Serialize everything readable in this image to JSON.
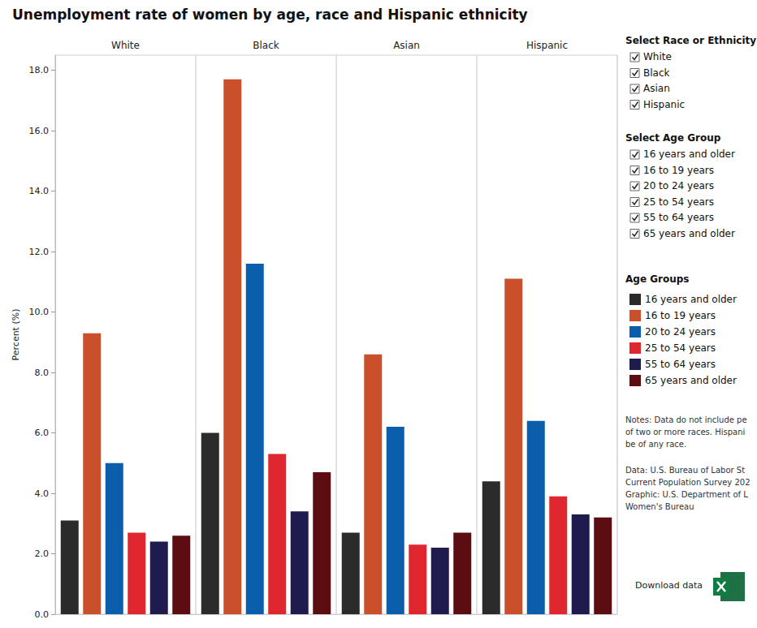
{
  "chart_data": {
    "type": "bar",
    "title": "Unemployment rate of women by age, race and Hispanic ethnicity",
    "y_label": "Percent (%)",
    "categories": [
      "White",
      "Black",
      "Asian",
      "Hispanic"
    ],
    "series": [
      {
        "name": "16 years and older",
        "color": "#2b2b2b",
        "values": [
          3.1,
          6.0,
          2.7,
          4.4
        ]
      },
      {
        "name": "16 to 19 years",
        "color": "#c9502a",
        "values": [
          9.3,
          17.7,
          8.6,
          11.1
        ]
      },
      {
        "name": "20 to 24 years",
        "color": "#0a5eac",
        "values": [
          5.0,
          11.6,
          6.2,
          6.4
        ]
      },
      {
        "name": "25 to 54 years",
        "color": "#e0262e",
        "values": [
          2.7,
          5.3,
          2.3,
          3.9
        ]
      },
      {
        "name": "55 to 64 years",
        "color": "#201b4f",
        "values": [
          2.4,
          3.4,
          2.2,
          3.3
        ]
      },
      {
        "name": "65 years and older",
        "color": "#5b0d12",
        "values": [
          2.6,
          4.7,
          2.7,
          3.2
        ]
      }
    ],
    "ylim": [
      0,
      18.5
    ],
    "yticks": [
      {
        "value": 0,
        "label": "0.0"
      },
      {
        "value": 2,
        "label": "2.0"
      },
      {
        "value": 4,
        "label": "4.0"
      },
      {
        "value": 6,
        "label": "6.0"
      },
      {
        "value": 8,
        "label": "8.0"
      },
      {
        "value": 10,
        "label": "10.0"
      },
      {
        "value": 12,
        "label": "12.0"
      },
      {
        "value": 14,
        "label": "14.0"
      },
      {
        "value": 16,
        "label": "16.0"
      },
      {
        "value": 18,
        "label": "18.0"
      }
    ],
    "grid": false,
    "legend": "right"
  },
  "controls": [
    {
      "title": "Select Race or Ethnicity",
      "options": [
        "White",
        "Black",
        "Asian",
        "Hispanic"
      ]
    },
    {
      "title": "Select Age Group",
      "options": [
        "16 years and older",
        "16 to 19 years",
        "20 to 24 years",
        "25 to 54 years",
        "55 to 64 years",
        "65 years and older"
      ]
    }
  ],
  "legend_title": "Age Groups",
  "notes": [
    "Notes: Data do not include pe",
    "of two or more races. Hispani",
    "be of any race."
  ],
  "source": [
    "Data: U.S. Bureau of Labor St",
    "Current Population Survey 202",
    "Graphic: U.S. Department of L",
    "Women's Bureau"
  ],
  "download": "Download data"
}
